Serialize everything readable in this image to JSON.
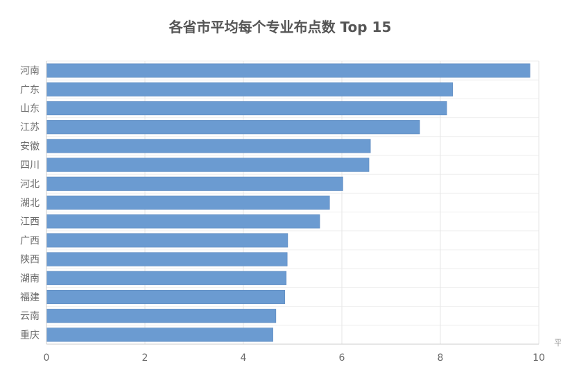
{
  "chart_data": {
    "type": "bar",
    "orientation": "horizontal",
    "title": "各省市平均每个专业布点数 Top 15",
    "xlabel": "平",
    "ylabel": "",
    "categories": [
      "河南",
      "广东",
      "山东",
      "江苏",
      "安徽",
      "四川",
      "河北",
      "湖北",
      "江西",
      "广西",
      "陕西",
      "湖南",
      "福建",
      "云南",
      "重庆"
    ],
    "values": [
      9.82,
      8.25,
      8.13,
      7.58,
      6.58,
      6.55,
      6.02,
      5.75,
      5.55,
      4.9,
      4.89,
      4.87,
      4.84,
      4.66,
      4.6
    ],
    "xlim": [
      0,
      10
    ],
    "xticks": [
      0,
      2,
      4,
      6,
      8,
      10
    ],
    "grid": true,
    "legend": "none",
    "bar_color": "#6b9bd1"
  }
}
